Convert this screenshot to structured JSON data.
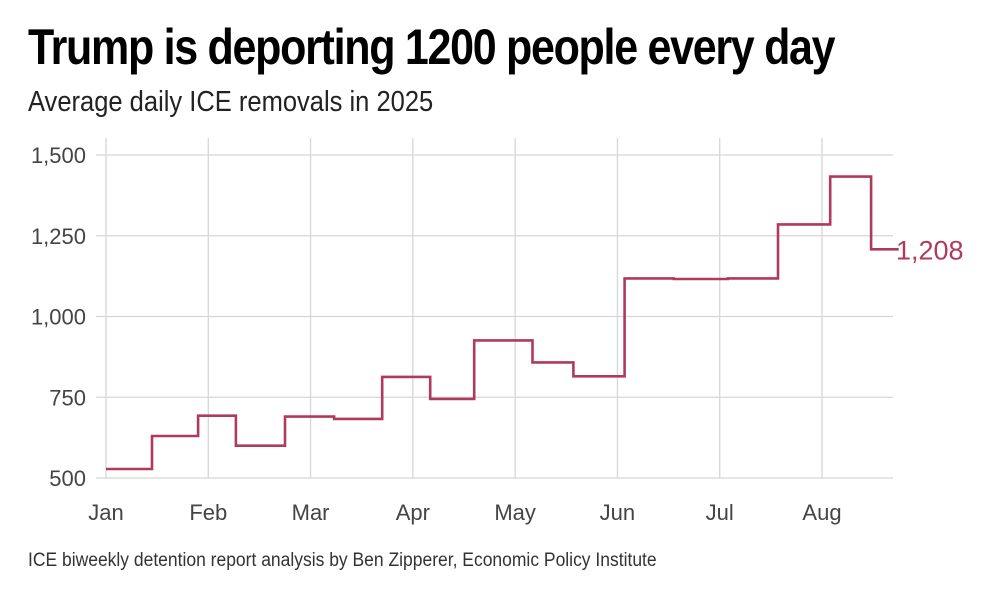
{
  "chart_data": {
    "type": "line",
    "step": true,
    "title": "Trump is deporting 1200 people every day",
    "subtitle": "Average daily ICE removals in 2025",
    "source": "ICE biweekly detention report analysis by Ben Zipperer, Economic Policy Institute",
    "ylim": [
      500,
      1500
    ],
    "xlim": [
      0,
      7.75
    ],
    "y_ticks": [
      500,
      750,
      1000,
      1250,
      1500
    ],
    "y_tick_labels": [
      "500",
      "750",
      "1,000",
      "1,250",
      "1,500"
    ],
    "x_ticks": [
      0,
      1,
      2,
      3,
      4,
      5,
      6,
      7
    ],
    "x_tick_labels": [
      "Jan",
      "Feb",
      "Mar",
      "Apr",
      "May",
      "Jun",
      "Jul",
      "Aug"
    ],
    "line_color": "#b03a5b",
    "end_label": "1,208",
    "series": [
      {
        "name": "Average daily ICE removals",
        "x": [
          0,
          0.45,
          0.9,
          1.27,
          1.75,
          2.23,
          2.7,
          3.17,
          3.6,
          4.17,
          4.57,
          5.07,
          5.55,
          6.08,
          6.57,
          7.08,
          7.48,
          7.75
        ],
        "values": [
          528,
          630,
          693,
          600,
          690,
          683,
          813,
          745,
          926,
          858,
          815,
          1118,
          1116,
          1118,
          1285,
          1433,
          1208,
          1208
        ]
      }
    ]
  }
}
